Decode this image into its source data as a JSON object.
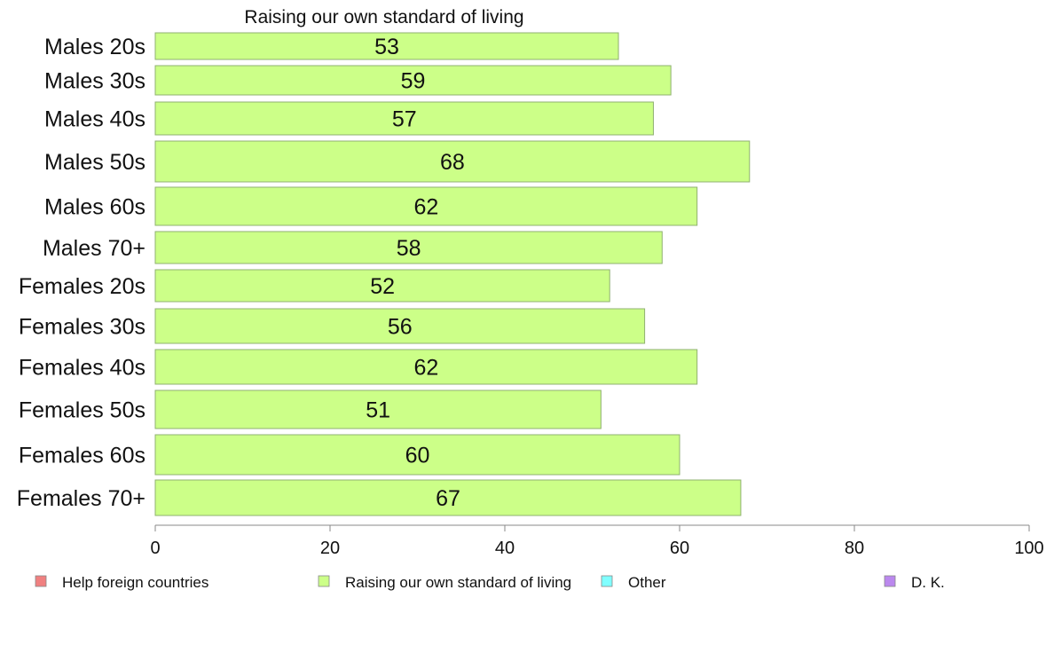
{
  "chart_data": {
    "type": "bar",
    "orientation": "horizontal",
    "title": "Raising our own standard of living",
    "categories": [
      "Males 20s",
      "Males 30s",
      "Males 40s",
      "Males 50s",
      "Males 60s",
      "Males 70+",
      "Females 20s",
      "Females 30s",
      "Females 40s",
      "Females 50s",
      "Females 60s",
      "Females 70+"
    ],
    "series": [
      {
        "name": "Raising our own standard of living",
        "color": "#ccff88",
        "values": [
          53,
          59,
          57,
          68,
          62,
          58,
          52,
          56,
          62,
          51,
          60,
          67
        ]
      }
    ],
    "value_labels": [
      "53",
      "59",
      "57",
      "68",
      "62",
      "58",
      "52",
      "56",
      "62",
      "51",
      "60",
      "67"
    ],
    "xlim": [
      0,
      100
    ],
    "x_ticks": [
      0,
      20,
      40,
      60,
      80,
      100
    ],
    "x_tick_labels": [
      "0",
      "20",
      "40",
      "60",
      "80",
      "100"
    ],
    "grid": false,
    "legend": {
      "placement": "bottom",
      "entries": [
        {
          "label": "Help foreign countries",
          "color": "#f08080"
        },
        {
          "label": "Raising our own standard of living",
          "color": "#ccff88"
        },
        {
          "label": "Other",
          "color": "#80ffff"
        },
        {
          "label": "D. K.",
          "color": "#bb88ee"
        }
      ]
    }
  }
}
